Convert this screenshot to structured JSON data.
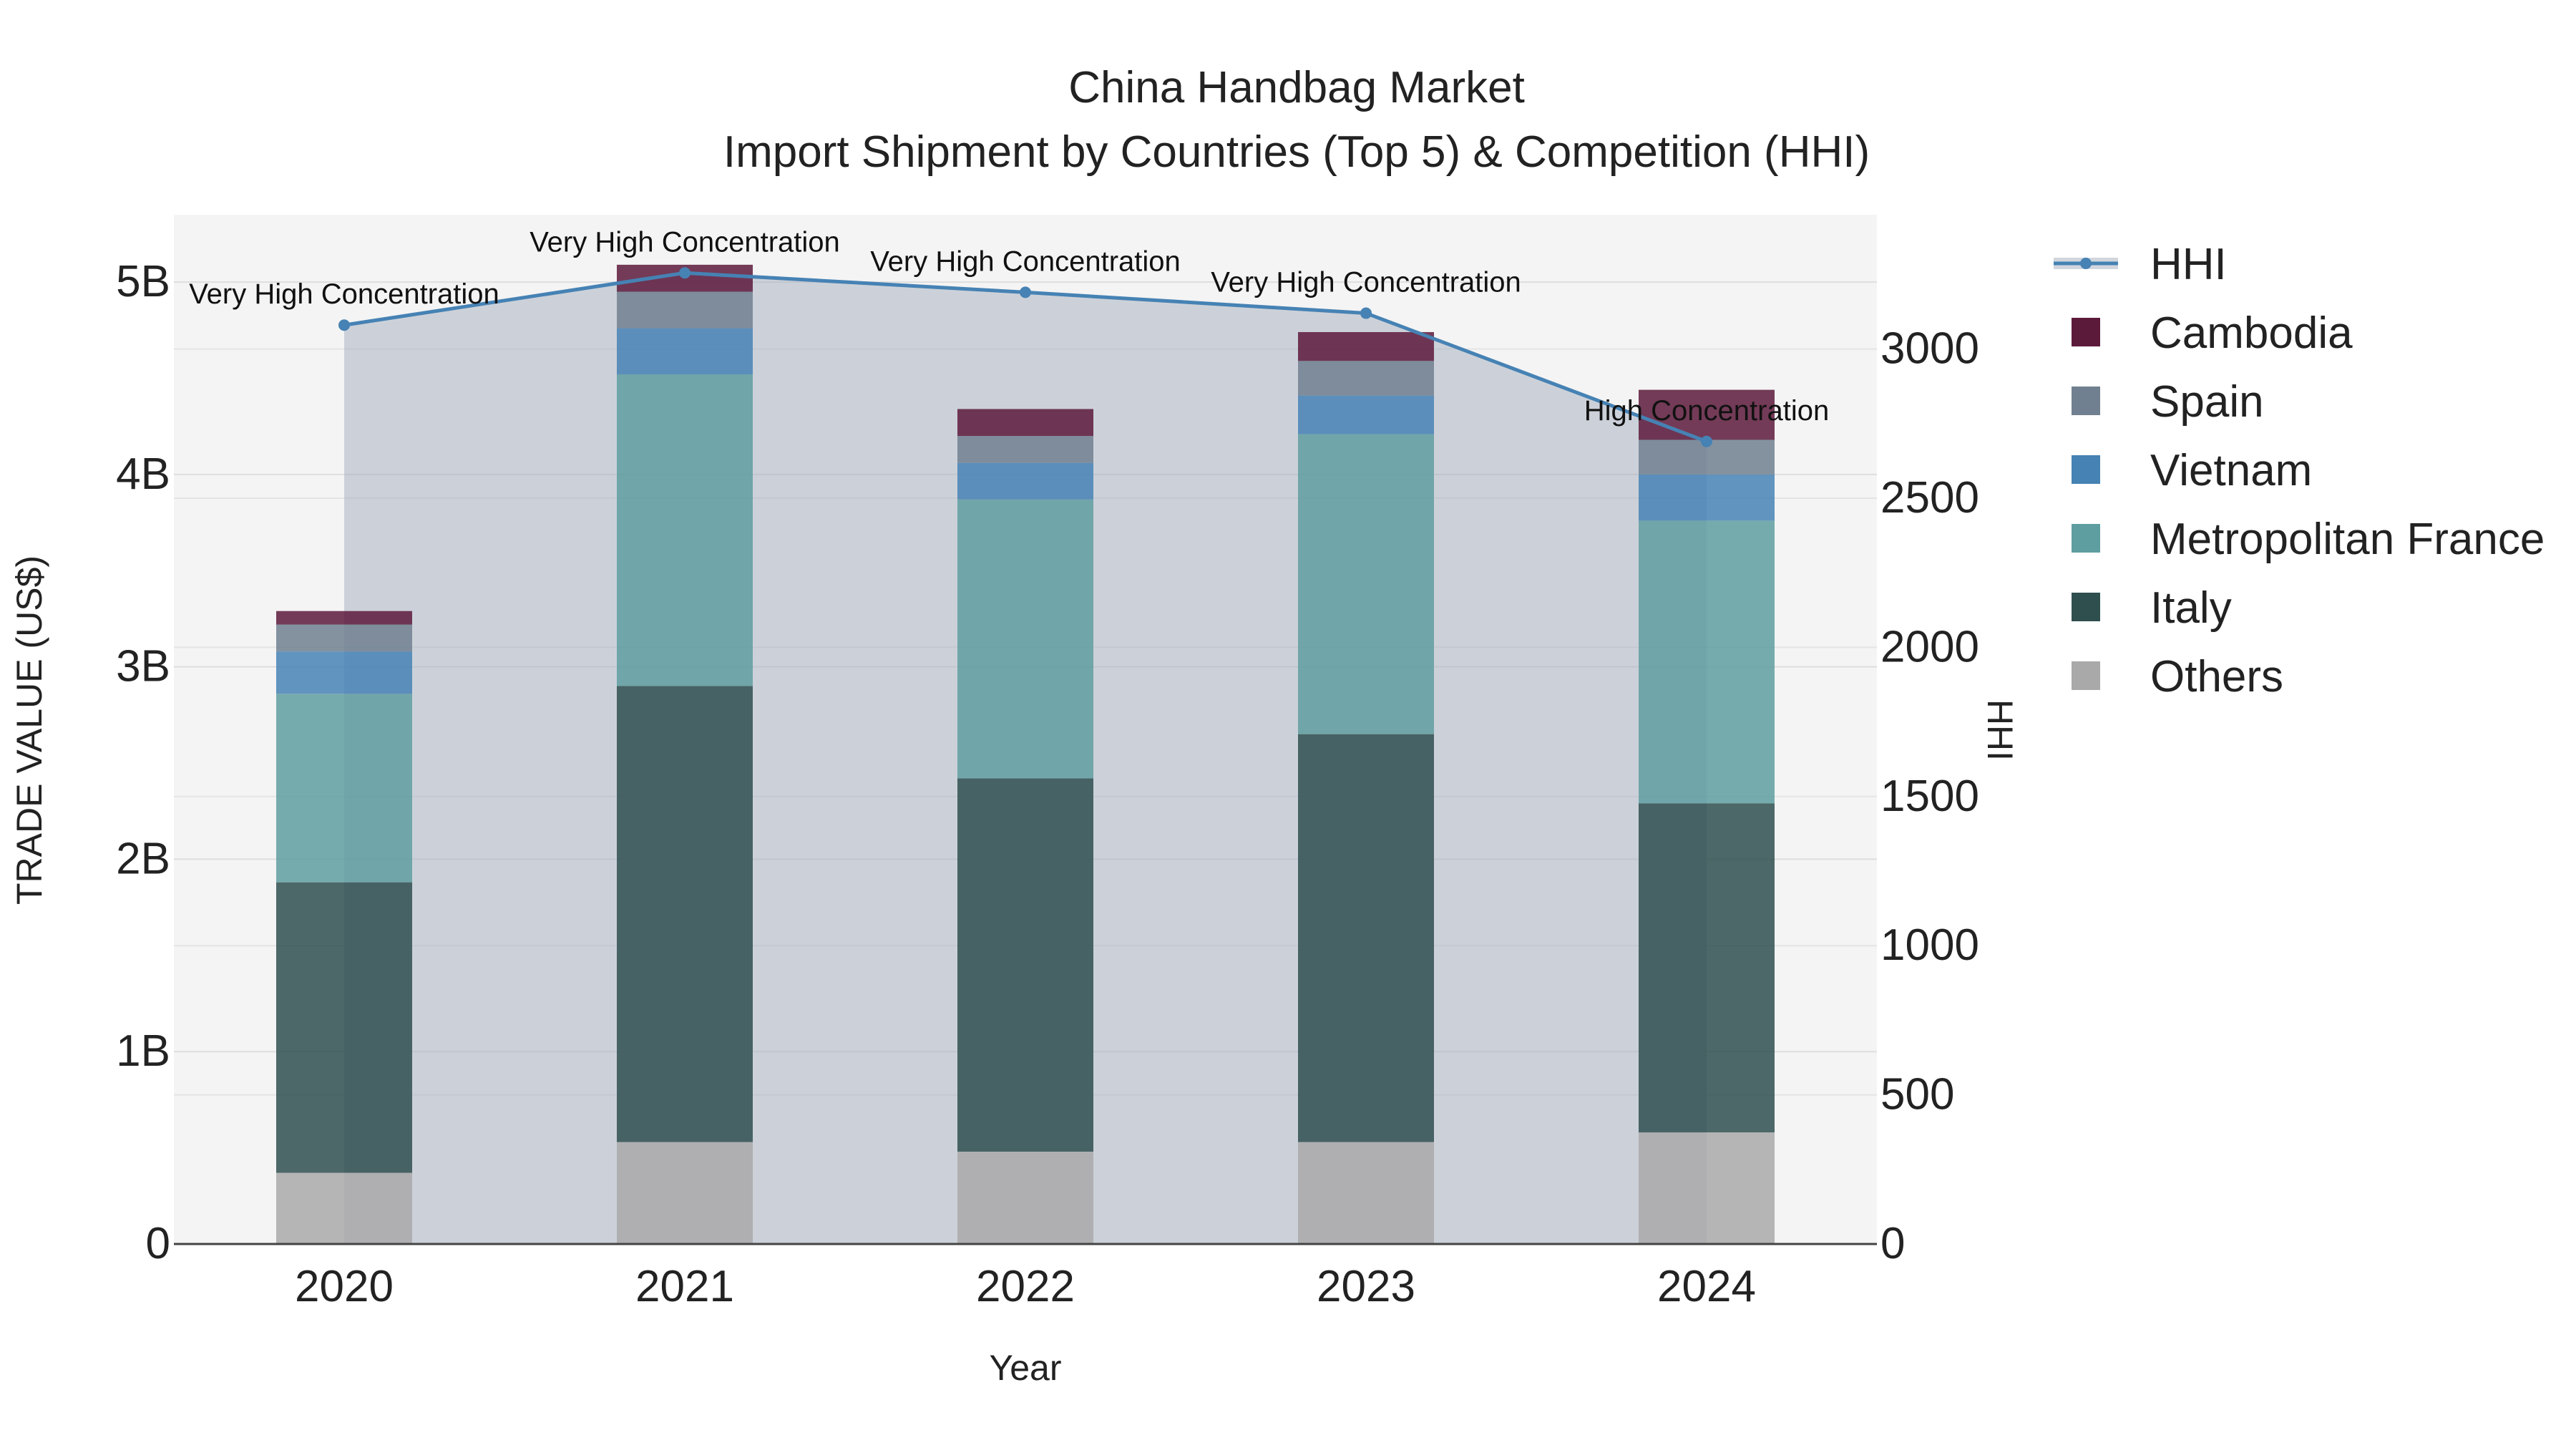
{
  "chart_data": {
    "type": "bar",
    "title": "China Handbag Market",
    "subtitle": "Import Shipment by Countries (Top 5) & Competition (HHI)",
    "xlabel": "Year",
    "ylabel": "TRADE VALUE (US$)",
    "y2label": "HHI",
    "categories": [
      "2020",
      "2021",
      "2022",
      "2023",
      "2024"
    ],
    "ylim": [
      0,
      5.35
    ],
    "y_ticks": [
      0,
      1,
      2,
      3,
      4,
      5
    ],
    "y_tick_labels": [
      "0",
      "1B",
      "2B",
      "3B",
      "4B",
      "5B"
    ],
    "y2lim": [
      0,
      3450
    ],
    "y2_ticks": [
      0,
      500,
      1000,
      1500,
      2000,
      2500,
      3000
    ],
    "y2_tick_labels": [
      "0",
      "500",
      "1000",
      "1500",
      "2000",
      "2500",
      "3000"
    ],
    "value_unit": "billion US$",
    "series": [
      {
        "name": "Others",
        "color": "#a9a9a9",
        "values": [
          0.37,
          0.53,
          0.48,
          0.53,
          0.58
        ]
      },
      {
        "name": "Italy",
        "color": "#2f4f4f",
        "values": [
          1.51,
          2.37,
          1.94,
          2.12,
          1.71
        ]
      },
      {
        "name": "Metropolitan France",
        "color": "#5f9ea0",
        "values": [
          0.98,
          1.62,
          1.45,
          1.56,
          1.47
        ]
      },
      {
        "name": "Vietnam",
        "color": "#4682b4",
        "values": [
          0.22,
          0.24,
          0.19,
          0.2,
          0.24
        ]
      },
      {
        "name": "Spain",
        "color": "#708090",
        "values": [
          0.14,
          0.19,
          0.14,
          0.18,
          0.18
        ]
      },
      {
        "name": "Cambodia",
        "color": "#5c1a3b",
        "values": [
          0.07,
          0.14,
          0.14,
          0.15,
          0.26
        ]
      }
    ],
    "hhi": {
      "name": "HHI",
      "color": "#4682b4",
      "values": [
        3080,
        3255,
        3190,
        3120,
        2690
      ],
      "annotations": [
        "Very High Concentration",
        "Very High Concentration",
        "Very High Concentration",
        "Very High Concentration",
        "High Concentration"
      ]
    },
    "legend": {
      "position": "right",
      "items": [
        "HHI",
        "Cambodia",
        "Spain",
        "Vietnam",
        "Metropolitan France",
        "Italy",
        "Others"
      ]
    }
  }
}
